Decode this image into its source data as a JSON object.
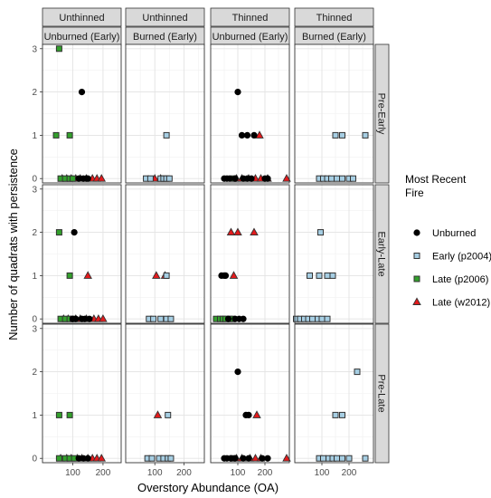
{
  "chart_data": {
    "type": "scatter",
    "xlabel": "Overstory Abundance (OA)",
    "ylabel": "Number of quadrats with persistence",
    "ylim": [
      -0.1,
      3.1
    ],
    "y_ticks": [
      0,
      1,
      2,
      3
    ],
    "grid": true,
    "legend_position": "right",
    "legend": {
      "title_lines": [
        "Most Recent",
        "Fire"
      ],
      "entries": [
        {
          "key": "unburned",
          "label": "Unburned"
        },
        {
          "key": "early",
          "label": "Early (p2004)"
        },
        {
          "key": "late2006",
          "label": "Late (p2006)"
        },
        {
          "key": "late2012",
          "label": "Late (w2012)"
        }
      ]
    },
    "series_styles": {
      "unburned": {
        "shape": "circle",
        "fill": "#000000",
        "stroke": "#000000"
      },
      "early": {
        "shape": "square",
        "fill": "#a6cee3",
        "stroke": "#333333"
      },
      "late2006": {
        "shape": "square",
        "fill": "#33a02c",
        "stroke": "#333333"
      },
      "late2012": {
        "shape": "triangle",
        "fill": "#e31a1c",
        "stroke": "#333333"
      }
    },
    "columns": [
      {
        "top": "Unthinned",
        "sub": "Unburned (Early)",
        "xlim": [
          0,
          260
        ],
        "x_ticks": [
          100,
          200
        ]
      },
      {
        "top": "Unthinned",
        "sub": "Burned (Early)",
        "xlim": [
          0,
          270
        ],
        "x_ticks": [
          100,
          200
        ]
      },
      {
        "top": "Thinned",
        "sub": "Unburned (Early)",
        "xlim": [
          0,
          290
        ],
        "x_ticks": [
          100,
          200
        ]
      },
      {
        "top": "Thinned",
        "sub": "Burned (Early)",
        "xlim": [
          0,
          290
        ],
        "x_ticks": [
          100,
          200
        ]
      }
    ],
    "rows": [
      "Pre-Early",
      "Early-Late",
      "Pre-Late"
    ],
    "panels": [
      [
        {
          "unburned": [
            [
              130,
              2
            ],
            [
              120,
              0
            ],
            [
              135,
              0
            ],
            [
              145,
              0
            ],
            [
              150,
              0
            ]
          ],
          "late2006": [
            [
              55,
              3
            ],
            [
              45,
              1
            ],
            [
              90,
              1
            ],
            [
              60,
              0
            ],
            [
              75,
              0
            ],
            [
              90,
              0
            ],
            [
              100,
              0
            ]
          ],
          "late2012": [
            [
              65,
              0
            ],
            [
              80,
              0
            ],
            [
              95,
              0
            ],
            [
              110,
              0
            ],
            [
              125,
              0
            ],
            [
              145,
              0
            ],
            [
              165,
              0
            ],
            [
              180,
              0
            ],
            [
              195,
              0
            ]
          ]
        },
        {
          "early": [
            [
              140,
              1
            ],
            [
              70,
              0
            ],
            [
              85,
              0
            ],
            [
              120,
              0
            ],
            [
              130,
              0
            ],
            [
              140,
              0
            ],
            [
              150,
              0
            ]
          ],
          "late2012": [
            [
              100,
              0
            ],
            [
              120,
              0
            ]
          ]
        },
        {
          "unburned": [
            [
              100,
              2
            ],
            [
              115,
              1
            ],
            [
              135,
              1
            ],
            [
              160,
              1
            ],
            [
              50,
              0
            ],
            [
              60,
              0
            ],
            [
              70,
              0
            ],
            [
              90,
              0
            ],
            [
              120,
              0
            ],
            [
              135,
              0
            ],
            [
              150,
              0
            ],
            [
              200,
              0
            ],
            [
              210,
              0
            ]
          ],
          "late2006": [
            [
              85,
              0
            ]
          ],
          "late2012": [
            [
              180,
              1
            ],
            [
              95,
              0
            ],
            [
              115,
              0
            ],
            [
              140,
              0
            ],
            [
              165,
              0
            ],
            [
              185,
              0
            ],
            [
              210,
              0
            ],
            [
              280,
              0
            ]
          ]
        },
        {
          "early": [
            [
              150,
              1
            ],
            [
              175,
              1
            ],
            [
              260,
              1
            ],
            [
              90,
              0
            ],
            [
              105,
              0
            ],
            [
              120,
              0
            ],
            [
              135,
              0
            ],
            [
              155,
              0
            ],
            [
              175,
              0
            ],
            [
              200,
              0
            ],
            [
              215,
              0
            ]
          ]
        }
      ],
      [
        {
          "unburned": [
            [
              105,
              2
            ],
            [
              100,
              0
            ],
            [
              110,
              0
            ],
            [
              130,
              0
            ],
            [
              140,
              0
            ],
            [
              155,
              0
            ]
          ],
          "late2006": [
            [
              55,
              2
            ],
            [
              90,
              1
            ],
            [
              60,
              0
            ],
            [
              75,
              0
            ],
            [
              90,
              0
            ],
            [
              100,
              0
            ]
          ],
          "late2012": [
            [
              150,
              1
            ],
            [
              70,
              0
            ],
            [
              85,
              0
            ],
            [
              110,
              0
            ],
            [
              125,
              0
            ],
            [
              145,
              0
            ],
            [
              170,
              0
            ],
            [
              185,
              0
            ],
            [
              200,
              0
            ]
          ]
        },
        {
          "early": [
            [
              140,
              1
            ],
            [
              80,
              0
            ],
            [
              95,
              0
            ],
            [
              120,
              0
            ],
            [
              140,
              0
            ],
            [
              155,
              0
            ]
          ],
          "late2012": [
            [
              105,
              1
            ],
            [
              135,
              1
            ]
          ]
        },
        {
          "unburned": [
            [
              40,
              1
            ],
            [
              50,
              1
            ],
            [
              55,
              1
            ],
            [
              65,
              0
            ],
            [
              90,
              0
            ],
            [
              105,
              0
            ],
            [
              120,
              0
            ]
          ],
          "late2006": [
            [
              20,
              0
            ],
            [
              35,
              0
            ],
            [
              45,
              0
            ],
            [
              55,
              0
            ],
            [
              70,
              0
            ],
            [
              80,
              0
            ]
          ],
          "late2012": [
            [
              75,
              2
            ],
            [
              100,
              2
            ],
            [
              160,
              2
            ],
            [
              85,
              1
            ]
          ]
        },
        {
          "early": [
            [
              95,
              2
            ],
            [
              55,
              1
            ],
            [
              90,
              1
            ],
            [
              120,
              1
            ],
            [
              140,
              1
            ],
            [
              5,
              0
            ],
            [
              20,
              0
            ],
            [
              35,
              0
            ],
            [
              50,
              0
            ],
            [
              65,
              0
            ],
            [
              85,
              0
            ],
            [
              100,
              0
            ],
            [
              120,
              0
            ]
          ]
        }
      ],
      [
        {
          "unburned": [
            [
              120,
              0
            ],
            [
              135,
              0
            ],
            [
              150,
              0
            ]
          ],
          "late2006": [
            [
              55,
              1
            ],
            [
              90,
              1
            ],
            [
              55,
              0
            ],
            [
              75,
              0
            ],
            [
              90,
              0
            ],
            [
              105,
              0
            ]
          ],
          "late2012": [
            [
              60,
              0
            ],
            [
              80,
              0
            ],
            [
              95,
              0
            ],
            [
              115,
              0
            ],
            [
              130,
              0
            ],
            [
              150,
              0
            ],
            [
              165,
              0
            ],
            [
              180,
              0
            ],
            [
              195,
              0
            ]
          ]
        },
        {
          "early": [
            [
              145,
              1
            ],
            [
              75,
              0
            ],
            [
              90,
              0
            ],
            [
              115,
              0
            ],
            [
              130,
              0
            ],
            [
              145,
              0
            ],
            [
              155,
              0
            ]
          ],
          "late2012": [
            [
              110,
              1
            ]
          ]
        },
        {
          "unburned": [
            [
              100,
              2
            ],
            [
              130,
              1
            ],
            [
              140,
              1
            ],
            [
              50,
              0
            ],
            [
              60,
              0
            ],
            [
              75,
              0
            ],
            [
              90,
              0
            ],
            [
              120,
              0
            ],
            [
              140,
              0
            ],
            [
              190,
              0
            ],
            [
              210,
              0
            ]
          ],
          "late2006": [
            [
              80,
              0
            ]
          ],
          "late2012": [
            [
              170,
              1
            ],
            [
              95,
              0
            ],
            [
              115,
              0
            ],
            [
              145,
              0
            ],
            [
              165,
              0
            ],
            [
              185,
              0
            ],
            [
              280,
              0
            ]
          ]
        },
        {
          "early": [
            [
              230,
              2
            ],
            [
              150,
              1
            ],
            [
              175,
              1
            ],
            [
              90,
              0
            ],
            [
              105,
              0
            ],
            [
              125,
              0
            ],
            [
              140,
              0
            ],
            [
              155,
              0
            ],
            [
              175,
              0
            ],
            [
              200,
              0
            ],
            [
              260,
              0
            ]
          ]
        }
      ]
    ]
  }
}
